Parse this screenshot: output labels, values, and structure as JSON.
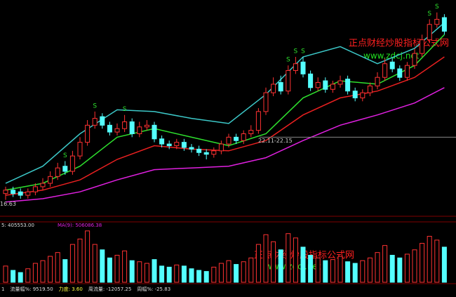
{
  "chart_data": [
    {
      "type": "candlestick",
      "ylim": [
        16,
        28
      ],
      "open": [
        17.0,
        17.2,
        17.1,
        16.9,
        17.1,
        17.4,
        17.6,
        18.0,
        18.6,
        18.3,
        19.2,
        20.0,
        21.0,
        21.5,
        21.0,
        20.6,
        20.8,
        21.2,
        20.5,
        20.9,
        21.0,
        20.2,
        19.9,
        19.8,
        20.0,
        19.7,
        19.6,
        19.4,
        19.3,
        19.5,
        19.9,
        20.3,
        20.1,
        20.5,
        20.7,
        21.8,
        22.9,
        23.5,
        23.0,
        24.2,
        24.7,
        24.0,
        23.2,
        23.6,
        23.1,
        23.4,
        23.7,
        23.0,
        22.6,
        22.9,
        23.3,
        23.8,
        24.7,
        24.3,
        23.8,
        24.5,
        25.2,
        26.0,
        26.9,
        27.3
      ],
      "high": [
        17.4,
        17.4,
        17.3,
        17.3,
        17.6,
        17.9,
        18.3,
        18.8,
        18.9,
        19.5,
        20.3,
        21.3,
        21.8,
        21.7,
        21.2,
        21.1,
        21.6,
        21.4,
        21.2,
        21.3,
        21.2,
        20.4,
        20.1,
        20.2,
        20.2,
        19.9,
        19.8,
        19.6,
        19.7,
        20.1,
        20.5,
        20.5,
        20.7,
        21.0,
        22.0,
        23.2,
        23.8,
        23.9,
        24.5,
        25.0,
        25.0,
        24.2,
        23.8,
        23.8,
        23.6,
        23.9,
        23.9,
        23.2,
        23.1,
        23.5,
        24.1,
        24.9,
        24.9,
        24.5,
        24.7,
        25.5,
        26.3,
        27.2,
        27.6,
        27.5
      ],
      "low": [
        16.63,
        16.8,
        16.7,
        16.7,
        16.9,
        17.2,
        17.4,
        17.8,
        18.1,
        18.1,
        19.0,
        19.8,
        20.8,
        20.8,
        20.4,
        20.4,
        20.6,
        20.3,
        20.3,
        20.7,
        20.0,
        19.7,
        19.6,
        19.6,
        19.5,
        19.4,
        19.2,
        19.0,
        19.1,
        19.3,
        19.7,
        19.9,
        19.9,
        20.3,
        20.5,
        21.6,
        22.7,
        22.8,
        22.8,
        24.0,
        23.8,
        23.0,
        23.0,
        22.9,
        22.9,
        23.2,
        22.8,
        22.4,
        22.4,
        22.7,
        23.1,
        23.6,
        24.1,
        23.6,
        23.6,
        24.3,
        25.0,
        25.8,
        26.7,
        26.3
      ],
      "close": [
        17.2,
        17.0,
        16.9,
        17.1,
        17.4,
        17.6,
        18.0,
        18.5,
        18.3,
        19.2,
        20.0,
        21.0,
        21.4,
        21.0,
        20.6,
        20.8,
        21.2,
        20.5,
        20.9,
        21.0,
        20.2,
        19.9,
        19.8,
        20.0,
        19.7,
        19.6,
        19.4,
        19.3,
        19.5,
        19.9,
        20.3,
        20.1,
        20.5,
        20.7,
        21.8,
        22.9,
        23.4,
        23.0,
        24.2,
        24.6,
        24.0,
        23.2,
        23.5,
        23.1,
        23.4,
        23.6,
        23.0,
        22.6,
        22.9,
        23.3,
        23.8,
        24.6,
        24.3,
        23.8,
        24.5,
        25.2,
        26.0,
        26.9,
        27.2,
        26.5
      ],
      "up_color": "#ff3232",
      "down_color": "#54ffff",
      "line_x": [
        0,
        5,
        10,
        15,
        20,
        25,
        30,
        35,
        40,
        45,
        50,
        55,
        59
      ],
      "series": [
        {
          "color": "#3cc8c8",
          "values": [
            17.6,
            18.6,
            20.5,
            21.9,
            21.8,
            21.4,
            21.1,
            22.8,
            25.0,
            25.6,
            24.6,
            25.5,
            27.0
          ]
        },
        {
          "color": "#2ee02e",
          "values": [
            17.2,
            17.6,
            18.6,
            20.3,
            20.8,
            20.3,
            19.8,
            20.5,
            22.6,
            23.6,
            23.4,
            24.5,
            26.3
          ]
        },
        {
          "color": "#e82020",
          "values": [
            16.9,
            17.2,
            17.8,
            19.0,
            19.8,
            19.6,
            19.5,
            20.1,
            21.6,
            22.6,
            23.0,
            23.8,
            25.0
          ]
        },
        {
          "color": "#e020e0",
          "values": [
            16.5,
            16.7,
            17.1,
            17.8,
            18.4,
            18.5,
            18.6,
            19.1,
            20.1,
            21.0,
            21.6,
            22.3,
            23.2
          ]
        }
      ],
      "signal_label": "S",
      "signal_color": "#2ee02e",
      "signal_at": [
        8,
        12,
        16,
        38,
        39,
        40,
        57,
        58
      ],
      "annotation": {
        "text": "22.11-22.15",
        "value": 20.3
      }
    },
    {
      "type": "bar",
      "ylim": [
        0,
        100
      ],
      "values": [
        30,
        22,
        18,
        25,
        35,
        40,
        48,
        55,
        42,
        70,
        80,
        95,
        70,
        60,
        45,
        50,
        58,
        40,
        38,
        35,
        42,
        30,
        28,
        32,
        30,
        25,
        22,
        20,
        28,
        35,
        40,
        33,
        38,
        45,
        70,
        88,
        75,
        60,
        90,
        82,
        65,
        50,
        45,
        40,
        42,
        48,
        38,
        35,
        40,
        45,
        55,
        68,
        50,
        45,
        52,
        60,
        72,
        85,
        78,
        65
      ],
      "header": [
        "5: 405553.00",
        "MA(9): 506086.38"
      ]
    }
  ],
  "watermark": {
    "title": "正点财经炒股指标公式网",
    "url": "www.zdcj.net"
  },
  "info": [
    "1",
    "流量幅%: 9519.50",
    "力度: 3.60",
    "周流量: -12057.25",
    "周幅%: -25.83"
  ]
}
